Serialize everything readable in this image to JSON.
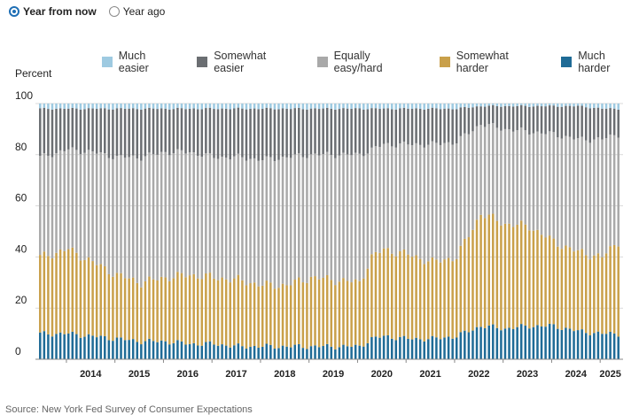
{
  "toggle": {
    "options": [
      {
        "label": "Year from now",
        "selected": true
      },
      {
        "label": "Year ago",
        "selected": false
      }
    ]
  },
  "source": "Source: New York Fed Survey of Consumer Expectations",
  "chart_data": {
    "type": "bar",
    "stacked": true,
    "ylabel": "Percent",
    "ylim": [
      0,
      100
    ],
    "yticks": [
      "0",
      "20",
      "40",
      "60",
      "80",
      "100"
    ],
    "xticks": [
      "2014",
      "2015",
      "2016",
      "2017",
      "2018",
      "2019",
      "2020",
      "2021",
      "2022",
      "2023",
      "2024",
      "2025"
    ],
    "x_start": "2013-06",
    "x_end": "2025-05",
    "frequency": "monthly",
    "grid": true,
    "legend_position": "top",
    "series": [
      {
        "name": "Much easier",
        "color": "#9ecae1"
      },
      {
        "name": "Somewhat easier",
        "color": "#6b6e72"
      },
      {
        "name": "Equally easy/hard",
        "color": "#a9a9a9"
      },
      {
        "name": "Somewhat harder",
        "color": "#c9a04a"
      },
      {
        "name": "Much harder",
        "color": "#1f6b96"
      }
    ],
    "anchors_note": "values per month: [much_harder, somewhat_harder_cum, equal_cum, somewhat_easier_cum]; much_easier fills to 100",
    "anchors": [
      [
        "2013-06",
        10,
        40,
        79,
        98
      ],
      [
        "2014-01",
        10,
        43,
        82,
        98
      ],
      [
        "2014-07",
        9,
        38,
        81,
        98
      ],
      [
        "2015-01",
        8,
        33,
        79,
        98
      ],
      [
        "2015-07",
        7,
        30,
        79,
        98
      ],
      [
        "2016-01",
        7,
        32,
        81,
        98
      ],
      [
        "2016-07",
        6,
        33,
        81,
        98
      ],
      [
        "2017-01",
        6,
        32,
        79,
        98
      ],
      [
        "2017-07",
        5,
        31,
        79,
        98
      ],
      [
        "2018-01",
        5,
        29,
        78,
        98
      ],
      [
        "2018-07",
        5,
        29,
        79,
        98
      ],
      [
        "2019-01",
        5,
        32,
        80,
        98
      ],
      [
        "2019-07",
        5,
        31,
        80,
        98
      ],
      [
        "2020-01",
        5,
        30,
        80,
        98
      ],
      [
        "2020-04",
        8,
        40,
        82,
        98
      ],
      [
        "2020-07",
        9,
        43,
        84,
        98
      ],
      [
        "2021-01",
        8,
        41,
        84,
        98
      ],
      [
        "2021-07",
        8,
        38,
        84,
        98
      ],
      [
        "2022-01",
        9,
        40,
        85,
        98
      ],
      [
        "2022-07",
        13,
        57,
        92,
        99
      ],
      [
        "2023-01",
        12,
        53,
        90,
        99
      ],
      [
        "2023-07",
        13,
        52,
        89,
        99
      ],
      [
        "2024-01",
        13,
        46,
        88,
        99
      ],
      [
        "2024-07",
        11,
        42,
        86,
        99
      ],
      [
        "2025-01",
        10,
        40,
        86,
        98
      ],
      [
        "2025-05",
        10,
        46,
        88,
        98
      ]
    ]
  }
}
